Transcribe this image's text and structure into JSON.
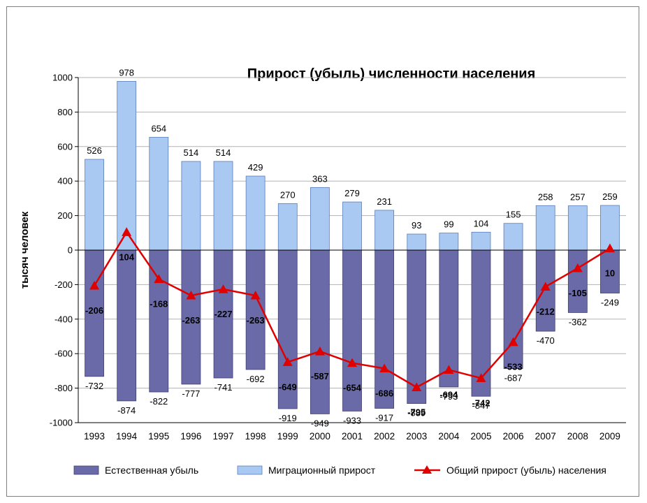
{
  "chart_data": {
    "type": "bar",
    "title": "Прирост (убыль) численности населения",
    "ylabel": "тысяч человек",
    "xlabel": "",
    "ylim": [
      -1000,
      1000
    ],
    "yticks": [
      1000,
      800,
      600,
      400,
      200,
      0,
      -200,
      -400,
      -600,
      -800,
      -1000
    ],
    "grid": true,
    "legend_position": "bottom",
    "categories": [
      "1993",
      "1994",
      "1995",
      "1996",
      "1997",
      "1998",
      "1999",
      "2000",
      "2001",
      "2002",
      "2003",
      "2004",
      "2005",
      "2006",
      "2007",
      "2008",
      "2009"
    ],
    "series": [
      {
        "name": "Естественная убыль",
        "kind": "bar",
        "color": "#6b6aa8",
        "values": [
          -732,
          -874,
          -822,
          -777,
          -741,
          -692,
          -919,
          -949,
          -933,
          -917,
          -889,
          -793,
          -847,
          -687,
          -470,
          -362,
          -249
        ]
      },
      {
        "name": "Миграционный прирост",
        "kind": "bar",
        "color": "#a9c8f2",
        "values": [
          526,
          978,
          654,
          514,
          514,
          429,
          270,
          363,
          279,
          231,
          93,
          99,
          104,
          155,
          258,
          257,
          259
        ]
      },
      {
        "name": "Общий прирост (убыль) населения",
        "kind": "line",
        "color": "#e00000",
        "marker": "triangle",
        "values": [
          -206,
          104,
          -168,
          -263,
          -227,
          -263,
          -649,
          -587,
          -654,
          -686,
          -795,
          -694,
          -742,
          -533,
          -212,
          -105,
          10
        ]
      }
    ]
  }
}
